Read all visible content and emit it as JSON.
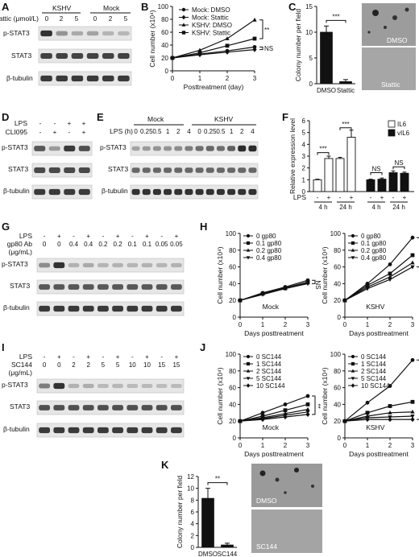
{
  "panels": {
    "A": {
      "letter": "A",
      "group_labels": [
        "KSHV",
        "Mock"
      ],
      "dose_label": "Stattic (μmol/L)",
      "doses": [
        "0",
        "2",
        "5",
        "0",
        "2",
        "5"
      ],
      "rows": [
        "p-STAT3",
        "STAT3",
        "β-tubulin"
      ]
    },
    "B": {
      "letter": "B"
    },
    "C": {
      "letter": "C",
      "image_labels": [
        "DMSO",
        "Stattic"
      ]
    },
    "D": {
      "letter": "D",
      "treat_labels": [
        "LPS",
        "CLI095"
      ],
      "lps": [
        "-",
        "-",
        "+",
        "+"
      ],
      "cli": [
        "-",
        "+",
        "-",
        "+"
      ],
      "rows": [
        "p-STAT3",
        "STAT3",
        "β-tubulin"
      ]
    },
    "E": {
      "letter": "E",
      "group_labels": [
        "Mock",
        "KSHV"
      ],
      "time_label": "LPS (h)",
      "times": [
        "0",
        "0.25",
        "0.5",
        "1",
        "2",
        "4",
        "0",
        "0.25",
        "0.5",
        "1",
        "2",
        "4"
      ],
      "rows": [
        "p-STAT3",
        "STAT3",
        "β-tubulin"
      ]
    },
    "F": {
      "letter": "F"
    },
    "G": {
      "letter": "G",
      "treat_labels": [
        "LPS",
        "gp80 Ab",
        "(μg/mL)"
      ],
      "lps": [
        "-",
        "+",
        "-",
        "+",
        "-",
        "+",
        "-",
        "+",
        "-",
        "+"
      ],
      "dose": [
        "0",
        "0",
        "0.4",
        "0.4",
        "0.2",
        "0.2",
        "0.1",
        "0.1",
        "0.05",
        "0.05"
      ],
      "rows": [
        "p-STAT3",
        "STAT3",
        "β-tubulin"
      ]
    },
    "H": {
      "letter": "H"
    },
    "I": {
      "letter": "I",
      "treat_labels": [
        "LPS",
        "SC144",
        "(μg/mL)"
      ],
      "lps": [
        "-",
        "+",
        "-",
        "+",
        "-",
        "+",
        "-",
        "+",
        "-",
        "+"
      ],
      "dose": [
        "0",
        "0",
        "2",
        "2",
        "5",
        "5",
        "10",
        "10",
        "15",
        "15"
      ],
      "rows": [
        "p-STAT3",
        "STAT3",
        "β-tubulin"
      ]
    },
    "J": {
      "letter": "J"
    },
    "K": {
      "letter": "K",
      "image_labels": [
        "DMSO",
        "SC144"
      ]
    }
  },
  "chart_data": [
    {
      "panel": "B",
      "type": "line",
      "xlabel": "Posttreatment (day)",
      "ylabel": "Cell number (x10⁴)",
      "x": [
        0,
        1,
        2,
        3
      ],
      "xlim": [
        0,
        3
      ],
      "ylim": [
        0,
        100
      ],
      "yticks": [
        0,
        20,
        40,
        60,
        80,
        100
      ],
      "legend": [
        "Mock: DMSO",
        "Mock: Stattic",
        "KSHV: DMSO",
        "KSHV: Stattic"
      ],
      "series": [
        {
          "name": "KSHV: DMSO",
          "values": [
            20,
            32,
            50,
            79
          ]
        },
        {
          "name": "KSHV: Stattic",
          "values": [
            20,
            28,
            39,
            50
          ]
        },
        {
          "name": "Mock: DMSO",
          "values": [
            20,
            26,
            31,
            37
          ]
        },
        {
          "name": "Mock: Stattic",
          "values": [
            20,
            25,
            29,
            33
          ]
        }
      ],
      "annotations": [
        "**",
        "NS"
      ]
    },
    {
      "panel": "C",
      "type": "bar",
      "ylabel": "Colony number per field",
      "categories": [
        "DMSO",
        "Stattic"
      ],
      "values": [
        10,
        0.4
      ],
      "errors": [
        1.2,
        0.4
      ],
      "ylim": [
        0,
        15
      ],
      "yticks": [
        0,
        5,
        10,
        15
      ],
      "annotations": [
        "***"
      ]
    },
    {
      "panel": "F",
      "type": "bar",
      "ylabel": "Relative expression level",
      "groups": [
        "4 h",
        "24 h",
        "4 h",
        "24 h"
      ],
      "lps": [
        "-",
        "+",
        "-",
        "+",
        "-",
        "+",
        "-",
        "+"
      ],
      "legend": [
        "IL6",
        "vIL6"
      ],
      "series": [
        {
          "name": "IL6",
          "values": [
            1.0,
            2.8,
            2.8,
            4.6
          ],
          "errors": [
            0.05,
            0.2,
            0.1,
            0.6
          ]
        },
        {
          "name": "vIL6",
          "values": [
            1.0,
            1.05,
            1.6,
            1.55
          ],
          "errors": [
            0.05,
            0.1,
            0.15,
            0.1
          ]
        }
      ],
      "ylim": [
        0,
        6
      ],
      "yticks": [
        0,
        1,
        2,
        3,
        4,
        5,
        6
      ],
      "annotations": [
        "***",
        "***",
        "NS",
        "NS"
      ]
    },
    {
      "panel": "H",
      "type": "line",
      "xlabel": "Days posttreatment",
      "ylabel": "Cell number (x10⁴)",
      "subplots": [
        {
          "label": "Mock",
          "x": [
            0,
            1,
            2,
            3
          ],
          "ylim": [
            0,
            100
          ],
          "yticks": [
            0,
            20,
            40,
            60,
            80,
            100
          ],
          "legend": [
            "0 gp80",
            "0.1 gp80",
            "0.2 gp80",
            "0.4 gp80"
          ],
          "series": [
            {
              "name": "0 gp80",
              "values": [
                20,
                29,
                36,
                44
              ]
            },
            {
              "name": "0.1 gp80",
              "values": [
                20,
                28,
                35,
                42
              ]
            },
            {
              "name": "0.2 gp80",
              "values": [
                20,
                28,
                34,
                41
              ]
            },
            {
              "name": "0.4 gp80",
              "values": [
                20,
                27,
                34,
                40
              ]
            }
          ],
          "annotations": [
            "NS"
          ]
        },
        {
          "label": "KSHV",
          "x": [
            0,
            1,
            2,
            3
          ],
          "ylim": [
            0,
            100
          ],
          "yticks": [
            0,
            20,
            40,
            60,
            80,
            100
          ],
          "legend": [
            "0 gp80",
            "0.1 gp80",
            "0.2 gp80",
            "0.4 gp80"
          ],
          "series": [
            {
              "name": "0 gp80",
              "values": [
                20,
                40,
                63,
                95
              ]
            },
            {
              "name": "0.1 gp80",
              "values": [
                20,
                38,
                52,
                74
              ]
            },
            {
              "name": "0.2 gp80",
              "values": [
                20,
                36,
                48,
                65
              ]
            },
            {
              "name": "0.4 gp80",
              "values": [
                20,
                34,
                45,
                60
              ]
            }
          ],
          "annotations": [
            "***"
          ]
        }
      ]
    },
    {
      "panel": "J",
      "type": "line",
      "xlabel": "Days posttreatment",
      "ylabel": "Cell number (x10⁴)",
      "subplots": [
        {
          "label": "Mock",
          "x": [
            0,
            1,
            2,
            3
          ],
          "ylim": [
            0,
            100
          ],
          "yticks": [
            0,
            20,
            40,
            60,
            80,
            100
          ],
          "legend": [
            "0 SC144",
            "1 SC144",
            "2 SC144",
            "5 SC144",
            "10 SC144"
          ],
          "series": [
            {
              "name": "0 SC144",
              "values": [
                20,
                30,
                40,
                50
              ]
            },
            {
              "name": "1 SC144",
              "values": [
                20,
                26,
                33,
                40
              ]
            },
            {
              "name": "2 SC144",
              "values": [
                20,
                24,
                29,
                34
              ]
            },
            {
              "name": "5 SC144",
              "values": [
                20,
                23,
                27,
                31
              ]
            },
            {
              "name": "10 SC144",
              "values": [
                20,
                22,
                25,
                28
              ]
            }
          ],
          "annotations": [
            "**"
          ]
        },
        {
          "label": "KSHV",
          "x": [
            0,
            1,
            2,
            3
          ],
          "ylim": [
            0,
            100
          ],
          "yticks": [
            0,
            20,
            40,
            60,
            80,
            100
          ],
          "legend": [
            "0 SC144",
            "1 SC144",
            "2 SC144",
            "5 SC144",
            "10 SC144"
          ],
          "series": [
            {
              "name": "0 SC144",
              "values": [
                20,
                42,
                62,
                93
              ]
            },
            {
              "name": "1 SC144",
              "values": [
                20,
                30,
                38,
                43
              ]
            },
            {
              "name": "2 SC144",
              "values": [
                20,
                26,
                30,
                31
              ]
            },
            {
              "name": "5 SC144",
              "values": [
                20,
                24,
                25,
                26
              ]
            },
            {
              "name": "10 SC144",
              "values": [
                20,
                22,
                22,
                22
              ]
            }
          ],
          "annotations": [
            "***"
          ]
        }
      ]
    },
    {
      "panel": "K",
      "type": "bar",
      "ylabel": "Colony number per field",
      "categories": [
        "DMSO",
        "SC144"
      ],
      "values": [
        8.3,
        0.4
      ],
      "errors": [
        1.7,
        0.3
      ],
      "ylim": [
        0,
        12
      ],
      "yticks": [
        0,
        2,
        4,
        6,
        8,
        10,
        12
      ],
      "annotations": [
        "**"
      ]
    }
  ]
}
